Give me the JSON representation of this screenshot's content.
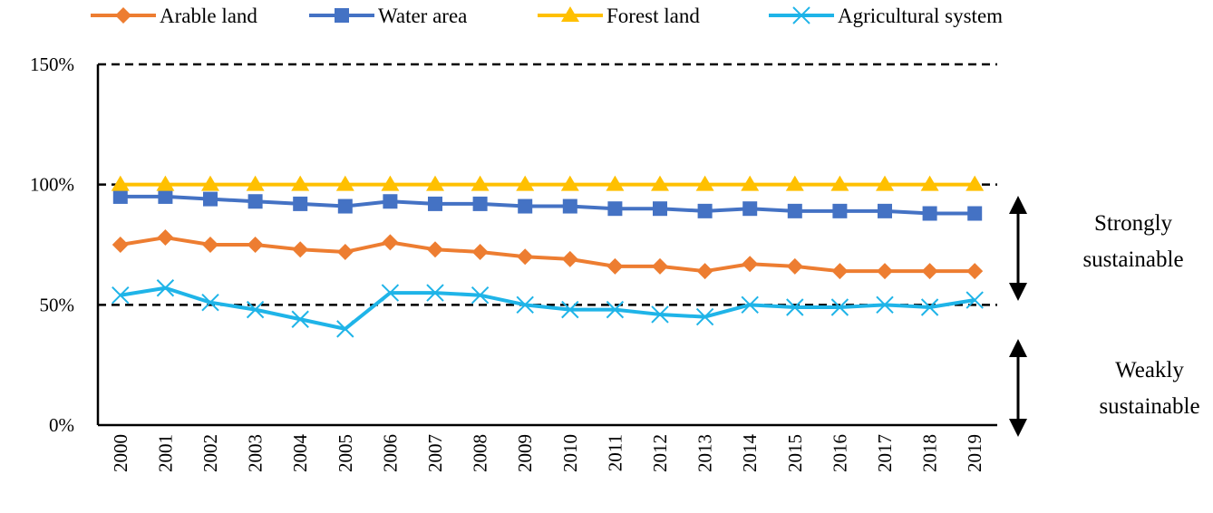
{
  "chart_data": {
    "type": "line",
    "title": "",
    "xlabel": "",
    "ylabel": "",
    "ylim": [
      0,
      150
    ],
    "ytick_values": [
      0,
      50,
      100,
      150
    ],
    "ytick_labels": [
      "0%",
      "50%",
      "100%",
      "150%"
    ],
    "reference_lines": [
      50,
      100,
      150
    ],
    "legend_position": "top",
    "categories": [
      "2000",
      "2001",
      "2002",
      "2003",
      "2004",
      "2005",
      "2006",
      "2007",
      "2008",
      "2009",
      "2010",
      "2011",
      "2012",
      "2013",
      "2014",
      "2015",
      "2016",
      "2017",
      "2018",
      "2019"
    ],
    "series": [
      {
        "name": "Arable land",
        "color": "#ED7D31",
        "marker": "diamond",
        "values": [
          75,
          78,
          75,
          75,
          73,
          72,
          76,
          73,
          72,
          70,
          69,
          66,
          66,
          64,
          67,
          66,
          64,
          64,
          64,
          64
        ]
      },
      {
        "name": "Water area",
        "color": "#4472C4",
        "marker": "square",
        "values": [
          95,
          95,
          94,
          93,
          92,
          91,
          93,
          92,
          92,
          91,
          91,
          90,
          90,
          89,
          90,
          89,
          89,
          89,
          88,
          88
        ]
      },
      {
        "name": "Forest land",
        "color": "#FFC000",
        "marker": "triangle",
        "values": [
          100,
          100,
          100,
          100,
          100,
          100,
          100,
          100,
          100,
          100,
          100,
          100,
          100,
          100,
          100,
          100,
          100,
          100,
          100,
          100
        ]
      },
      {
        "name": "Agricultural system",
        "color": "#1FB4E8",
        "marker": "cross",
        "values": [
          54,
          57,
          51,
          48,
          44,
          40,
          55,
          55,
          54,
          50,
          48,
          48,
          46,
          45,
          50,
          49,
          49,
          50,
          49,
          52
        ]
      }
    ],
    "annotations": {
      "strong_line1": "Strongly",
      "strong_line2": "sustainable",
      "weak_line1": "Weakly",
      "weak_line2": "sustainable"
    }
  }
}
